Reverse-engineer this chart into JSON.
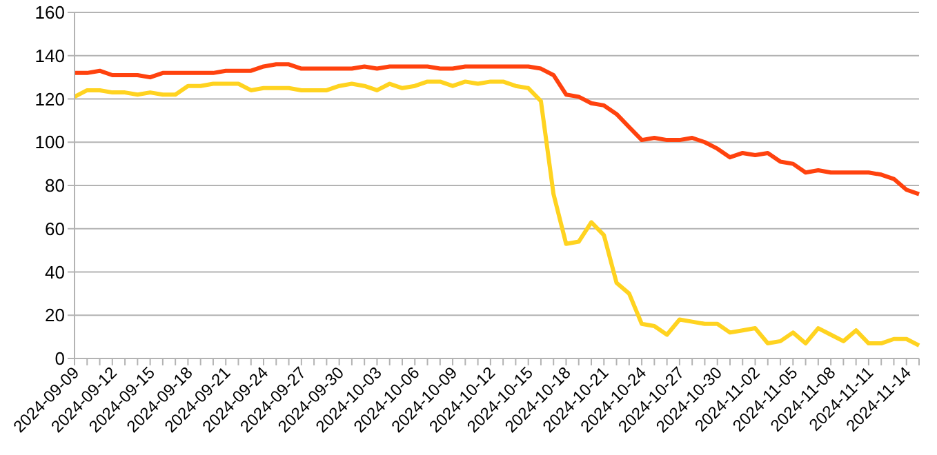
{
  "chart_data": {
    "type": "line",
    "categories": [
      "2024-09-09",
      null,
      null,
      "2024-09-12",
      null,
      null,
      "2024-09-15",
      null,
      null,
      "2024-09-18",
      null,
      null,
      "2024-09-21",
      null,
      null,
      "2024-09-24",
      null,
      null,
      "2024-09-27",
      null,
      null,
      "2024-09-30",
      null,
      null,
      "2024-10-03",
      null,
      null,
      "2024-10-06",
      null,
      null,
      "2024-10-09",
      null,
      null,
      "2024-10-12",
      null,
      null,
      "2024-10-15",
      null,
      null,
      "2024-10-18",
      null,
      null,
      "2024-10-21",
      null,
      null,
      "2024-10-24",
      null,
      null,
      "2024-10-27",
      null,
      null,
      "2024-10-30",
      null,
      null,
      "2024-11-02",
      null,
      null,
      "2024-11-05",
      null,
      null,
      "2024-11-08",
      null,
      null,
      "2024-11-11",
      null,
      null,
      "2024-11-14",
      null
    ],
    "series": [
      {
        "color": "#ff420e",
        "values": [
          132,
          132,
          133,
          131,
          131,
          131,
          130,
          132,
          132,
          132,
          132,
          132,
          133,
          133,
          133,
          135,
          136,
          136,
          134,
          134,
          134,
          134,
          134,
          135,
          134,
          135,
          135,
          135,
          135,
          134,
          134,
          135,
          135,
          135,
          135,
          135,
          135,
          134,
          131,
          122,
          121,
          118,
          117,
          113,
          107,
          101,
          102,
          101,
          101,
          102,
          100,
          97,
          93,
          95,
          94,
          95,
          91,
          90,
          86,
          87,
          86,
          86,
          86,
          86,
          85,
          83,
          78,
          76
        ]
      },
      {
        "color": "#ffd320",
        "values": [
          121,
          124,
          124,
          123,
          123,
          122,
          123,
          122,
          122,
          126,
          126,
          127,
          127,
          127,
          124,
          125,
          125,
          125,
          124,
          124,
          124,
          126,
          127,
          126,
          124,
          127,
          125,
          126,
          128,
          128,
          126,
          128,
          127,
          128,
          128,
          126,
          125,
          119,
          76,
          53,
          54,
          63,
          57,
          35,
          30,
          16,
          15,
          11,
          18,
          17,
          16,
          16,
          12,
          13,
          14,
          7,
          8,
          12,
          7,
          14,
          11,
          8,
          13,
          7,
          7,
          9,
          9,
          6
        ]
      }
    ],
    "ylim": [
      0,
      160
    ],
    "yticks": [
      0,
      20,
      40,
      60,
      80,
      100,
      120,
      140,
      160
    ],
    "grid": "y",
    "legend": false,
    "marker": "none",
    "line_style": "solid"
  }
}
